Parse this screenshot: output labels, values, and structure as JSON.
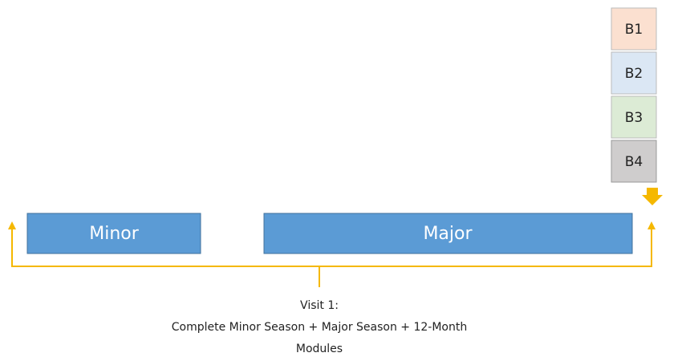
{
  "blocks": [
    {
      "label": "B1"
    },
    {
      "label": "B2"
    },
    {
      "label": "B3"
    },
    {
      "label": "B4"
    }
  ],
  "seasons": [
    {
      "label": "Minor"
    },
    {
      "label": "Major"
    }
  ],
  "caption": {
    "lines": [
      "Visit 1:",
      "Complete Minor Season + Major Season + 12-Month",
      "Modules"
    ]
  }
}
